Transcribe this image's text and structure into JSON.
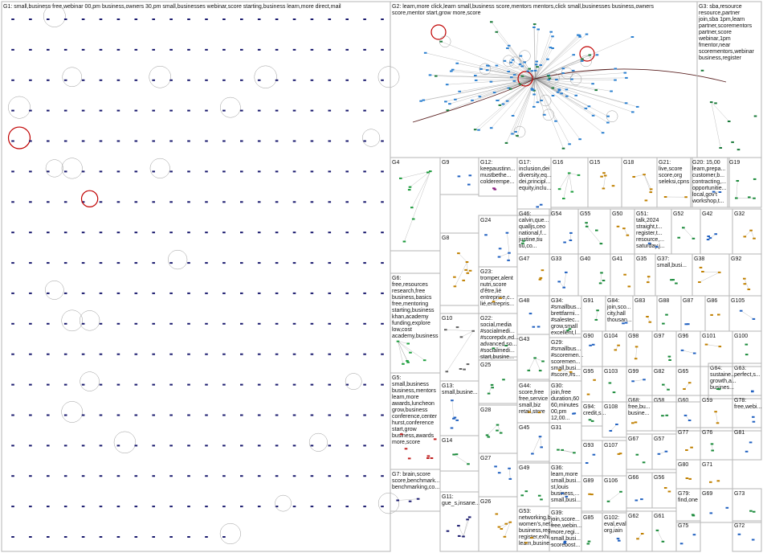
{
  "groups": [
    {
      "id": "G1",
      "label": "G1: small,business  free,webinar  00,pm  business,owners  30,pm  small,businesses  webinar,score  starting,business  learn,more  direct,mail",
      "rows": 18,
      "cols": 22,
      "color": "#1a1a6e"
    },
    {
      "id": "G2",
      "label": "G2: learn,more  click,learn  small,business  score,mentors  mentors,click  small,businesses  business,owners score,mentor  start,grow  more,score",
      "cluster": "hub",
      "color": "#2a7fd0"
    },
    {
      "id": "G3",
      "label": "G3: sba,resource resource,partner join,sba  1pm,learn partner,scorementors partner,score webinar,1pm fmentor,near scorementors,webinar business,register",
      "color": "#1a7a3a"
    },
    {
      "id": "G4",
      "label": "G4",
      "color": "#1a9a3a"
    },
    {
      "id": "G5",
      "label": "G5: small,business business,mentors learn,more awards,luncheon grow,business conference,center hurst,conference start,grow business,awards more,score",
      "color": "#c02020"
    },
    {
      "id": "G6",
      "label": "G6: free,resources research,free business,basics free,mentoring starting,business khan,academy funding,explore low,cost academy,business",
      "color": "#20a040"
    },
    {
      "id": "G7",
      "label": "G7: brain,score score,benchmark... benchmarking,co...",
      "color": "#1a1a6e"
    },
    {
      "id": "G8",
      "label": "G8",
      "color": "#c08000"
    },
    {
      "id": "G9",
      "label": "G9",
      "color": "#2060c0"
    },
    {
      "id": "G10",
      "label": "G10",
      "color": "#606060"
    },
    {
      "id": "G11",
      "label": "G11: gue_s,insane...",
      "color": "#1a1a6e"
    },
    {
      "id": "G12",
      "label": "G12: keepaustinn... mustbethe... colderempe...",
      "color": "#8a2080"
    },
    {
      "id": "G13",
      "label": "G13: small,busine...",
      "color": "#2060c0"
    },
    {
      "id": "G14",
      "label": "G14",
      "color": "#1a8a3a"
    },
    {
      "id": "G15",
      "label": "G15",
      "color": "#c08000"
    },
    {
      "id": "G16",
      "label": "G16",
      "color": "#20a040"
    },
    {
      "id": "G17",
      "label": "G17: inclusion,dei diversity,eq... dei,principl... equity,inclu...",
      "color": "#2060c0"
    },
    {
      "id": "G18",
      "label": "G18",
      "color": "#c08000"
    },
    {
      "id": "G19",
      "label": "G19",
      "color": "#1a8a3a"
    },
    {
      "id": "G20",
      "label": "G20: 15,00 learn,prepa... customer,b... contracting,... opportunitie... local,gov't workshop,t...",
      "color": "#2060c0"
    },
    {
      "id": "G21",
      "label": "G21: live,score score,org seleksi,cpns",
      "color": "#c08000"
    },
    {
      "id": "G22",
      "label": "G22: social,media #socialmedi... #scorepdx,ed... advanced,so... #socialmedi... start,busine...",
      "color": "#1a8a3a"
    },
    {
      "id": "G23",
      "label": "G23: tromper,alent nutri,score d'être,lié entreprise,c... lié,entrepris...",
      "color": "#c08000"
    },
    {
      "id": "G24",
      "label": "G24",
      "color": "#2060c0"
    },
    {
      "id": "G25",
      "label": "G25",
      "color": "#1a8a3a"
    },
    {
      "id": "G26",
      "label": "G26",
      "color": "#c08000"
    },
    {
      "id": "G27",
      "label": "G27",
      "color": "#2060c0"
    },
    {
      "id": "G28",
      "label": "G28",
      "color": "#1a8a3a"
    },
    {
      "id": "G29",
      "label": "G29: #smallbus... #scoremen... scoremen... small,busi... #score,#s...",
      "color": "#c08000"
    },
    {
      "id": "G30",
      "label": "G30: join,free duration,60 60,minutes 00,pm 12,00...",
      "color": "#2060c0"
    },
    {
      "id": "G31",
      "label": "G31",
      "color": "#1a8a3a"
    },
    {
      "id": "G32",
      "label": "G32",
      "color": "#c08000"
    },
    {
      "id": "G33",
      "label": "G33",
      "color": "#2060c0"
    },
    {
      "id": "G34",
      "label": "G34: #smallbus... brettfarmi... #salestec... grow,small excellent,l...",
      "color": "#1a8a3a"
    },
    {
      "id": "G35",
      "label": "G35",
      "color": "#c08000"
    },
    {
      "id": "G36",
      "label": "G36: learn,more small,busi... st,louis business,... small,busi...",
      "color": "#2060c0"
    },
    {
      "id": "G37",
      "label": "G37: small,busi...",
      "color": "#1a8a3a"
    },
    {
      "id": "G38",
      "label": "G38",
      "color": "#c08000"
    },
    {
      "id": "G39",
      "label": "G39: join,score... free,webin... more,regi... small,busi... scorebost...",
      "color": "#2060c0"
    },
    {
      "id": "G40",
      "label": "G40",
      "color": "#1a8a3a"
    },
    {
      "id": "G41",
      "label": "G41",
      "color": "#c08000"
    },
    {
      "id": "G42",
      "label": "G42",
      "color": "#2060c0"
    },
    {
      "id": "G43",
      "label": "G43",
      "color": "#1a8a3a"
    },
    {
      "id": "G44",
      "label": "G44: score,free free,service small,biz retail,store",
      "color": "#c08000"
    },
    {
      "id": "G45",
      "label": "G45",
      "color": "#2060c0"
    },
    {
      "id": "G46",
      "label": "G46: calvin,que... qualljs,ceo national,f... justine,tiu tiu,co...",
      "color": "#1a8a3a"
    },
    {
      "id": "G47",
      "label": "G47",
      "color": "#c08000"
    },
    {
      "id": "G48",
      "label": "G48",
      "color": "#2060c0"
    },
    {
      "id": "G49",
      "label": "G49",
      "color": "#1a8a3a"
    },
    {
      "id": "G50",
      "label": "G50",
      "color": "#c08000"
    },
    {
      "id": "G51",
      "label": "G51: talk,2024 straight,t... register,t... resource,... saturday,j...",
      "color": "#2060c0"
    },
    {
      "id": "G52",
      "label": "G52",
      "color": "#1a8a3a"
    },
    {
      "id": "G53",
      "label": "G53: networking,b... women's,net... business,reg... register,exhi... learn,busine...",
      "color": "#c08000"
    },
    {
      "id": "G54",
      "label": "G54",
      "color": "#2060c0"
    },
    {
      "id": "G55",
      "label": "G55",
      "color": "#1a8a3a"
    },
    {
      "id": "G56",
      "label": "G56",
      "color": "#c08000"
    },
    {
      "id": "G57",
      "label": "G57",
      "color": "#2060c0"
    },
    {
      "id": "G58",
      "label": "G58",
      "color": "#1a8a3a"
    },
    {
      "id": "G59",
      "label": "G59",
      "color": "#c08000"
    },
    {
      "id": "G60",
      "label": "G60",
      "color": "#2060c0"
    },
    {
      "id": "G61",
      "label": "G61",
      "color": "#1a8a3a"
    },
    {
      "id": "G62",
      "label": "G62",
      "color": "#c08000"
    },
    {
      "id": "G63",
      "label": "G63: perfect,s...",
      "color": "#2060c0"
    },
    {
      "id": "G64",
      "label": "G64: sustaine... growth,a... busines...",
      "color": "#1a8a3a"
    },
    {
      "id": "G65",
      "label": "G65",
      "color": "#c08000"
    },
    {
      "id": "G66",
      "label": "G66",
      "color": "#2060c0"
    },
    {
      "id": "G67",
      "label": "G67",
      "color": "#1a8a3a"
    },
    {
      "id": "G68",
      "label": "G68: free,bu... busine...",
      "color": "#c08000"
    },
    {
      "id": "G69",
      "label": "G69",
      "color": "#2060c0"
    },
    {
      "id": "G71",
      "label": "G71",
      "color": "#c08000"
    },
    {
      "id": "G72",
      "label": "G72",
      "color": "#2060c0"
    },
    {
      "id": "G73",
      "label": "G73",
      "color": "#1a8a3a"
    },
    {
      "id": "G75",
      "label": "G75",
      "color": "#2060c0"
    },
    {
      "id": "G76",
      "label": "G76",
      "color": "#1a8a3a"
    },
    {
      "id": "G77",
      "label": "G77",
      "color": "#c08000"
    },
    {
      "id": "G78",
      "label": "G78: free,webi...",
      "color": "#2060c0"
    },
    {
      "id": "G79",
      "label": "G79: find,one",
      "color": "#1a8a3a"
    },
    {
      "id": "G80",
      "label": "G80",
      "color": "#c08000"
    },
    {
      "id": "G81",
      "label": "G81",
      "color": "#2060c0"
    },
    {
      "id": "G82",
      "label": "G82",
      "color": "#1a8a3a"
    },
    {
      "id": "G83",
      "label": "G83",
      "color": "#c08000"
    },
    {
      "id": "G84",
      "label": "G84: join,sco... city,hall thousan...",
      "color": "#2060c0"
    },
    {
      "id": "G85",
      "label": "G85",
      "color": "#1a8a3a"
    },
    {
      "id": "G86",
      "label": "G86",
      "color": "#c08000"
    },
    {
      "id": "G87",
      "label": "G87",
      "color": "#2060c0"
    },
    {
      "id": "G88",
      "label": "G88",
      "color": "#1a8a3a"
    },
    {
      "id": "G89",
      "label": "G89",
      "color": "#c08000"
    },
    {
      "id": "G90",
      "label": "G90",
      "color": "#2060c0"
    },
    {
      "id": "G91",
      "label": "G91",
      "color": "#1a8a3a"
    },
    {
      "id": "G92",
      "label": "G92",
      "color": "#c08000"
    },
    {
      "id": "G93",
      "label": "G93",
      "color": "#2060c0"
    },
    {
      "id": "G94",
      "label": "G94: credit,s...",
      "color": "#1a8a3a"
    },
    {
      "id": "G95",
      "label": "G95",
      "color": "#c08000"
    },
    {
      "id": "G96",
      "label": "G96",
      "color": "#2060c0"
    },
    {
      "id": "G97",
      "label": "G97",
      "color": "#1a8a3a"
    },
    {
      "id": "G98",
      "label": "G98",
      "color": "#c08000"
    },
    {
      "id": "G99",
      "label": "G99",
      "color": "#2060c0"
    },
    {
      "id": "G100",
      "label": "G100",
      "color": "#1a8a3a"
    },
    {
      "id": "G101",
      "label": "G101",
      "color": "#c08000"
    },
    {
      "id": "G102",
      "label": "G102: eval,eval org,iain",
      "color": "#2060c0"
    },
    {
      "id": "G103",
      "label": "G103",
      "color": "#1a8a3a"
    },
    {
      "id": "G104",
      "label": "G104",
      "color": "#c08000"
    },
    {
      "id": "G105",
      "label": "G105",
      "color": "#2060c0"
    },
    {
      "id": "G106",
      "label": "G106",
      "color": "#1a8a3a"
    },
    {
      "id": "G107",
      "label": "G107",
      "color": "#c08000"
    },
    {
      "id": "G108",
      "label": "G108",
      "color": "#2060c0"
    }
  ]
}
